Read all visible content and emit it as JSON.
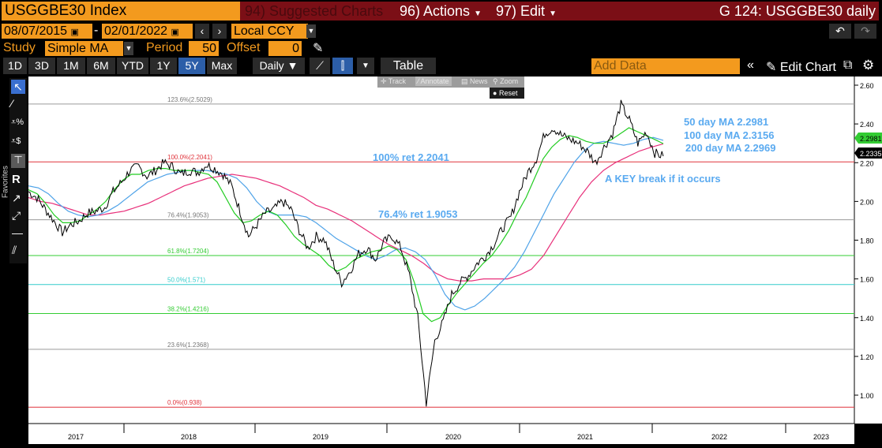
{
  "header": {
    "ticker": "USGGBE30 Index",
    "suggested": "94) Suggested Charts",
    "actions": "96) Actions",
    "edit": "97) Edit",
    "title_right": "G 124: USGGBE30 daily"
  },
  "controls": {
    "start_date": "08/07/2015",
    "end_date": "02/01/2022",
    "currency": "Local CCY",
    "study_label": "Study",
    "study_value": "Simple MA",
    "period_label": "Period",
    "period_value": "50",
    "offset_label": "Offset",
    "offset_value": "0"
  },
  "ranges": [
    "1D",
    "3D",
    "1M",
    "6M",
    "YTD",
    "1Y",
    "5Y",
    "Max"
  ],
  "active_range": "5Y",
  "frequency": "Daily",
  "table_label": "Table",
  "add_data_placeholder": "Add Data",
  "edit_chart": "Edit Chart",
  "favorites_label": "Favorites",
  "mini_toolbar": {
    "track": "Track",
    "annotate": "Annotate",
    "news": "News",
    "zoom": "Zoom",
    "reset": "Reset"
  },
  "chart_data": {
    "type": "line",
    "ylim": [
      0.9,
      2.62
    ],
    "yticks": [
      "2.60",
      "2.40",
      "2.20",
      "2.00",
      "1.80",
      "1.60",
      "1.40",
      "1.20",
      "1.00"
    ],
    "xlabels": [
      "2017",
      "2018",
      "2019",
      "2020",
      "2021",
      "2022",
      "2023"
    ],
    "fib_levels": [
      {
        "label": "123.6%(2.5029)",
        "value": 2.5029,
        "color": "#9a9a9a"
      },
      {
        "label": "100.0%(2.2041)",
        "value": 2.2041,
        "color": "#e0333b"
      },
      {
        "label": "76.4%(1.9053)",
        "value": 1.9053,
        "color": "#9a9a9a"
      },
      {
        "label": "61.8%(1.7204)",
        "value": 1.7204,
        "color": "#33cc33"
      },
      {
        "label": "50.0%(1.571)",
        "value": 1.571,
        "color": "#33cccc"
      },
      {
        "label": "38.2%(1.4216)",
        "value": 1.4216,
        "color": "#33cc33"
      },
      {
        "label": "23.6%(1.2368)",
        "value": 1.2368,
        "color": "#9a9a9a"
      },
      {
        "label": "0.0%(0.938)",
        "value": 0.938,
        "color": "#e0333b"
      }
    ],
    "price_series": [
      2.05,
      2.02,
      1.96,
      1.9,
      1.84,
      1.88,
      1.9,
      1.94,
      1.95,
      1.97,
      2.05,
      2.1,
      2.16,
      2.18,
      2.13,
      2.16,
      2.2,
      2.18,
      2.14,
      2.16,
      2.15,
      2.19,
      2.17,
      2.14,
      2.08,
      1.95,
      1.82,
      1.88,
      1.94,
      1.96,
      2.0,
      1.96,
      1.85,
      1.76,
      1.82,
      1.8,
      1.68,
      1.58,
      1.64,
      1.73,
      1.76,
      1.7,
      1.79,
      1.82,
      1.76,
      1.62,
      1.4,
      0.96,
      1.28,
      1.38,
      1.52,
      1.58,
      1.62,
      1.68,
      1.72,
      1.78,
      1.86,
      1.92,
      2.05,
      2.15,
      2.22,
      2.35,
      2.38,
      2.34,
      2.32,
      2.3,
      2.26,
      2.2,
      2.28,
      2.35,
      2.5,
      2.42,
      2.3,
      2.36,
      2.25,
      2.2335
    ],
    "ma50": [
      2.06,
      2.04,
      1.99,
      1.93,
      1.89,
      1.89,
      1.9,
      1.93,
      1.96,
      2.0,
      2.06,
      2.11,
      2.14,
      2.14,
      2.16,
      2.17,
      2.17,
      2.16,
      2.16,
      2.16,
      2.15,
      2.14,
      2.1,
      2.02,
      1.94,
      1.89,
      1.9,
      1.93,
      1.95,
      1.93,
      1.88,
      1.82,
      1.78,
      1.75,
      1.72,
      1.67,
      1.64,
      1.66,
      1.7,
      1.72,
      1.74,
      1.75,
      1.77,
      1.75,
      1.7,
      1.58,
      1.42,
      1.38,
      1.4,
      1.47,
      1.53,
      1.58,
      1.63,
      1.68,
      1.72,
      1.78,
      1.85,
      1.94,
      2.02,
      2.12,
      2.22,
      2.28,
      2.32,
      2.34,
      2.33,
      2.31,
      2.3,
      2.3,
      2.32,
      2.35,
      2.38,
      2.36,
      2.34,
      2.32,
      2.2981
    ],
    "ma100": [
      2.08,
      2.07,
      2.04,
      1.99,
      1.95,
      1.93,
      1.92,
      1.93,
      1.95,
      1.98,
      2.02,
      2.06,
      2.1,
      2.12,
      2.14,
      2.15,
      2.16,
      2.16,
      2.16,
      2.15,
      2.14,
      2.12,
      2.07,
      2.0,
      1.95,
      1.93,
      1.93,
      1.93,
      1.92,
      1.89,
      1.85,
      1.81,
      1.78,
      1.75,
      1.72,
      1.7,
      1.72,
      1.75,
      1.76,
      1.74,
      1.7,
      1.62,
      1.52,
      1.46,
      1.44,
      1.46,
      1.5,
      1.55,
      1.6,
      1.66,
      1.74,
      1.84,
      1.94,
      2.04,
      2.12,
      2.2,
      2.26,
      2.3,
      2.31,
      2.3,
      2.29,
      2.3,
      2.32,
      2.33,
      2.3156
    ],
    "ma200": [
      2.02,
      2.0,
      1.99,
      1.97,
      1.95,
      1.93,
      1.93,
      1.94,
      1.95,
      1.97,
      1.99,
      2.02,
      2.05,
      2.08,
      2.1,
      2.12,
      2.13,
      2.14,
      2.13,
      2.12,
      2.1,
      2.08,
      2.05,
      2.02,
      1.98,
      1.96,
      1.93,
      1.9,
      1.86,
      1.82,
      1.78,
      1.75,
      1.72,
      1.68,
      1.63,
      1.6,
      1.59,
      1.59,
      1.6,
      1.6,
      1.6,
      1.62,
      1.65,
      1.72,
      1.82,
      1.92,
      2.02,
      2.1,
      2.16,
      2.2,
      2.23,
      2.26,
      2.28,
      2.2969
    ],
    "annotations": [
      {
        "text": "100% ret 2.2041"
      },
      {
        "text": "76.4% ret 1.9053"
      },
      {
        "text": "50 day MA 2.2981"
      },
      {
        "text": "100 day MA 2.3156"
      },
      {
        "text": "200 day MA 2.2969"
      },
      {
        "text": "A KEY break if it occurs"
      }
    ],
    "last_values": [
      {
        "label": "2.2981",
        "color": "#33cc33"
      },
      {
        "label": "2.2335",
        "color": "#000000"
      }
    ],
    "colors": {
      "price": "#000000",
      "ma50": "#22cc22",
      "ma100": "#4fa3e8",
      "ma200": "#e8307a",
      "annotation": "#5aaaf0"
    }
  }
}
